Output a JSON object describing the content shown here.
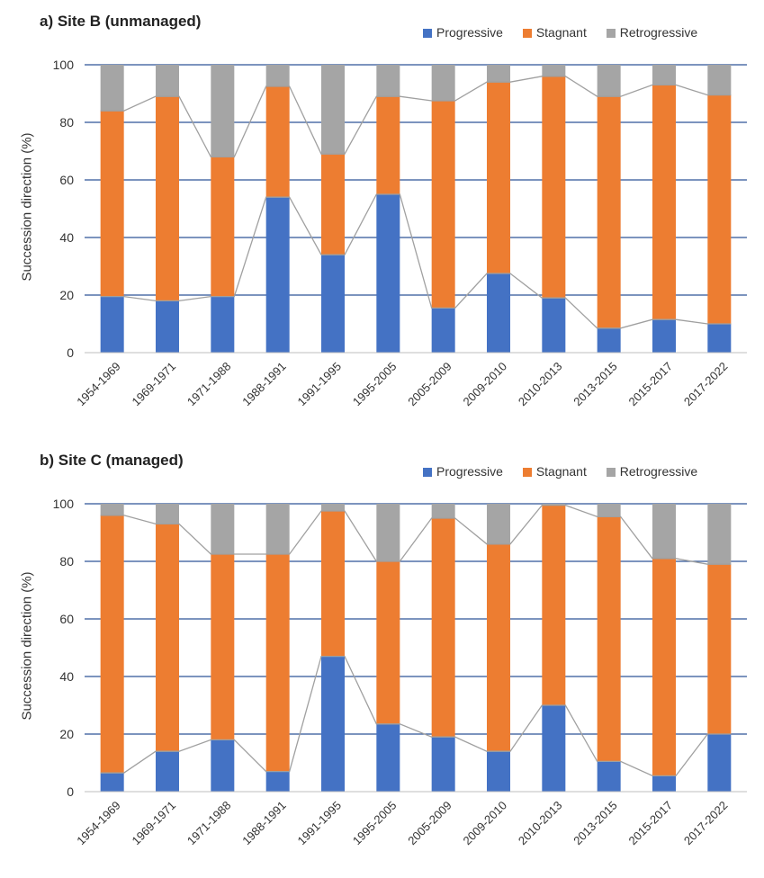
{
  "chart_data": [
    {
      "type": "bar",
      "stacked": true,
      "title": "a) Site B (unmanaged)",
      "xlabel": "",
      "ylabel": "Succession direction (%)",
      "ylim": [
        0,
        100
      ],
      "yticks": [
        0,
        20,
        40,
        60,
        80,
        100
      ],
      "grid": true,
      "legend_position": "top-right",
      "categories": [
        "1954-1969",
        "1969-1971",
        "1971-1988",
        "1988-1991",
        "1991-1995",
        "1995-2005",
        "2005-2009",
        "2009-2010",
        "2010-2013",
        "2013-2015",
        "2015-2017",
        "2017-2022"
      ],
      "series": [
        {
          "name": "Progressive",
          "color": "#4472C4",
          "values": [
            19.5,
            18,
            19.5,
            54,
            34,
            55,
            15.5,
            27.5,
            19,
            8.5,
            11.5,
            10
          ]
        },
        {
          "name": "Stagnant",
          "color": "#ED7D31",
          "values": [
            64.5,
            71,
            48.5,
            38.5,
            35,
            34,
            72,
            66.5,
            77,
            80.5,
            81.5,
            79.5
          ]
        },
        {
          "name": "Retrogressive",
          "color": "#A5A5A5",
          "values": [
            16,
            11,
            32,
            7.5,
            31,
            11,
            12.5,
            6,
            4,
            11,
            7,
            10.5
          ]
        }
      ]
    },
    {
      "type": "bar",
      "stacked": true,
      "title": "b) Site C (managed)",
      "xlabel": "",
      "ylabel": "Succession direction (%)",
      "ylim": [
        0,
        100
      ],
      "yticks": [
        0,
        20,
        40,
        60,
        80,
        100
      ],
      "grid": true,
      "legend_position": "top-right",
      "categories": [
        "1954-1969",
        "1969-1971",
        "1971-1988",
        "1988-1991",
        "1991-1995",
        "1995-2005",
        "2005-2009",
        "2009-2010",
        "2010-2013",
        "2013-2015",
        "2015-2017",
        "2017-2022"
      ],
      "series": [
        {
          "name": "Progressive",
          "color": "#4472C4",
          "values": [
            6.5,
            14,
            18,
            7,
            47,
            23.5,
            19,
            14,
            30,
            10.5,
            5.5,
            20
          ]
        },
        {
          "name": "Stagnant",
          "color": "#ED7D31",
          "values": [
            89.5,
            79,
            64.5,
            75.5,
            50.5,
            56.5,
            76,
            72,
            69.5,
            85,
            75.5,
            59
          ]
        },
        {
          "name": "Retrogressive",
          "color": "#A5A5A5",
          "values": [
            4,
            7,
            17.5,
            17.5,
            2.5,
            20,
            5,
            14,
            0.5,
            4.5,
            19,
            21
          ]
        }
      ]
    }
  ]
}
